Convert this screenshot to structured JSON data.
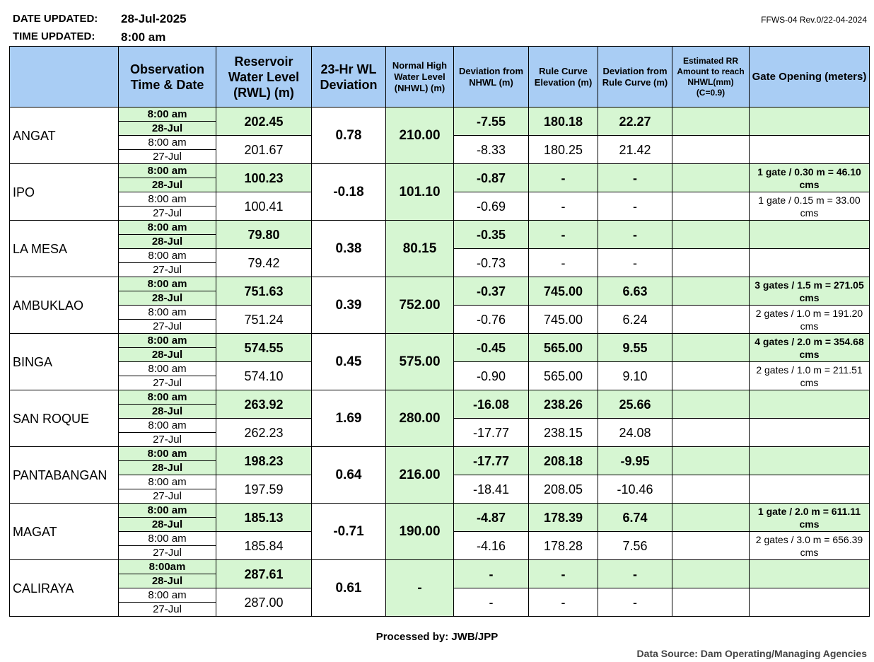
{
  "header": {
    "date_label": "DATE UPDATED:",
    "date_value": "28-Jul-2025",
    "time_label": "TIME UPDATED:",
    "time_value": "8:00 am",
    "revision": "FFWS-04 Rev.0/22-04-2024"
  },
  "columns": {
    "obs": "Observation Time & Date",
    "rwl": "Reservoir Water Level (RWL) (m)",
    "dev23": "23-Hr WL Deviation",
    "nhwl": "Normal High Water Level (NHWL) (m)",
    "dev_nhwl": "Deviation from NHWL (m)",
    "rule": "Rule Curve Elevation (m)",
    "dev_rule": "Deviation from Rule Curve (m)",
    "rr": "Estimated RR Amount to reach NHWL(mm) (C=0.9)",
    "gate": "Gate Opening (meters)"
  },
  "dams": [
    {
      "name": "ANGAT",
      "t1": "8:00 am",
      "d1": "28-Jul",
      "t2": "8:00 am",
      "d2": "27-Jul",
      "rwl1": "202.45",
      "rwl2": "201.67",
      "dev23": "0.78",
      "nhwl": "210.00",
      "dn1": "-7.55",
      "dn2": "-8.33",
      "rc1": "180.18",
      "rc2": "180.25",
      "dr1": "22.27",
      "dr2": "21.42",
      "rr1": "",
      "rr2": "",
      "g1": "",
      "g2": ""
    },
    {
      "name": "IPO",
      "t1": "8:00 am",
      "d1": "28-Jul",
      "t2": "8:00 am",
      "d2": "27-Jul",
      "rwl1": "100.23",
      "rwl2": "100.41",
      "dev23": "-0.18",
      "nhwl": "101.10",
      "dn1": "-0.87",
      "dn2": "-0.69",
      "rc1": "-",
      "rc2": "-",
      "dr1": "-",
      "dr2": "-",
      "rr1": "",
      "rr2": "",
      "g1": "1 gate / 0.30 m = 46.10 cms",
      "g2": "1 gate / 0.15 m = 33.00 cms"
    },
    {
      "name": "LA MESA",
      "t1": "8:00 am",
      "d1": "28-Jul",
      "t2": "8:00 am",
      "d2": "27-Jul",
      "rwl1": "79.80",
      "rwl2": "79.42",
      "dev23": "0.38",
      "nhwl": "80.15",
      "dn1": "-0.35",
      "dn2": "-0.73",
      "rc1": "-",
      "rc2": "-",
      "dr1": "-",
      "dr2": "-",
      "rr1": "",
      "rr2": "",
      "g1": "",
      "g2": ""
    },
    {
      "name": "AMBUKLAO",
      "t1": "8:00 am",
      "d1": "28-Jul",
      "t2": "8:00 am",
      "d2": "27-Jul",
      "rwl1": "751.63",
      "rwl2": "751.24",
      "dev23": "0.39",
      "nhwl": "752.00",
      "dn1": "-0.37",
      "dn2": "-0.76",
      "rc1": "745.00",
      "rc2": "745.00",
      "dr1": "6.63",
      "dr2": "6.24",
      "rr1": "",
      "rr2": "",
      "g1": "3 gates / 1.5 m = 271.05 cms",
      "g2": "2 gates / 1.0 m = 191.20 cms"
    },
    {
      "name": "BINGA",
      "t1": "8:00 am",
      "d1": "28-Jul",
      "t2": "8:00 am",
      "d2": "27-Jul",
      "rwl1": "574.55",
      "rwl2": "574.10",
      "dev23": "0.45",
      "nhwl": "575.00",
      "dn1": "-0.45",
      "dn2": "-0.90",
      "rc1": "565.00",
      "rc2": "565.00",
      "dr1": "9.55",
      "dr2": "9.10",
      "rr1": "",
      "rr2": "",
      "g1": "4 gates / 2.0 m = 354.68 cms",
      "g2": "2 gates / 1.0 m = 211.51 cms"
    },
    {
      "name": "SAN ROQUE",
      "t1": "8:00 am",
      "d1": "28-Jul",
      "t2": "8:00 am",
      "d2": "27-Jul",
      "rwl1": "263.92",
      "rwl2": "262.23",
      "dev23": "1.69",
      "nhwl": "280.00",
      "dn1": "-16.08",
      "dn2": "-17.77",
      "rc1": "238.26",
      "rc2": "238.15",
      "dr1": "25.66",
      "dr2": "24.08",
      "rr1": "",
      "rr2": "",
      "g1": "",
      "g2": ""
    },
    {
      "name": "PANTABANGAN",
      "t1": "8:00 am",
      "d1": "28-Jul",
      "t2": "8:00 am",
      "d2": "27-Jul",
      "rwl1": "198.23",
      "rwl2": "197.59",
      "dev23": "0.64",
      "nhwl": "216.00",
      "dn1": "-17.77",
      "dn2": "-18.41",
      "rc1": "208.18",
      "rc2": "208.05",
      "dr1": "-9.95",
      "dr2": "-10.46",
      "rr1": "",
      "rr2": "",
      "g1": "",
      "g2": ""
    },
    {
      "name": "MAGAT",
      "t1": "8:00 am",
      "d1": "28-Jul",
      "t2": "8:00 am",
      "d2": "27-Jul",
      "rwl1": "185.13",
      "rwl2": "185.84",
      "dev23": "-0.71",
      "nhwl": "190.00",
      "dn1": "-4.87",
      "dn2": "-4.16",
      "rc1": "178.39",
      "rc2": "178.28",
      "dr1": "6.74",
      "dr2": "7.56",
      "rr1": "",
      "rr2": "",
      "g1": "1 gate / 2.0 m = 611.11 cms",
      "g2": "2 gates / 3.0 m = 656.39 cms"
    },
    {
      "name": "CALIRAYA",
      "t1": "8:00am",
      "d1": "28-Jul",
      "t2": "8:00 am",
      "d2": "27-Jul",
      "rwl1": "287.61",
      "rwl2": "287.00",
      "dev23": "0.61",
      "nhwl": "-",
      "dn1": "-",
      "dn2": "-",
      "rc1": "-",
      "rc2": "-",
      "dr1": "-",
      "dr2": "-",
      "rr1": "",
      "rr2": "",
      "g1": "",
      "g2": ""
    }
  ],
  "footer": {
    "processed_by": "Processed by: JWB/JPP",
    "data_source": "Data Source: Dam Operating/Managing Agencies"
  }
}
